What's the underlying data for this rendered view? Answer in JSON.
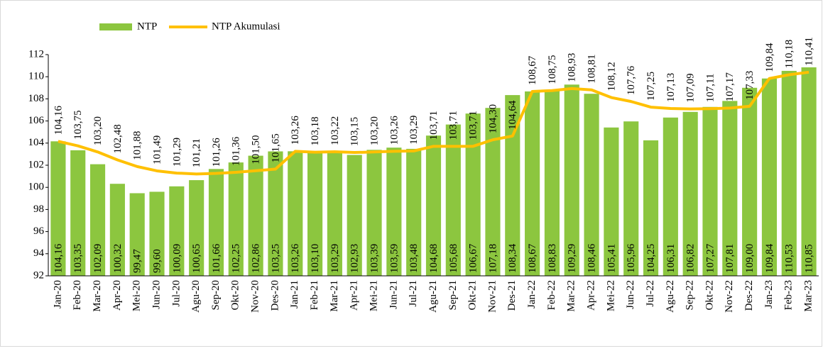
{
  "chart_data": {
    "type": "bar_line",
    "categories": [
      "Jan-20",
      "Feb-20",
      "Mar-20",
      "Apr-20",
      "Mei-20",
      "Jun-20",
      "Jul-20",
      "Agu-20",
      "Sep-20",
      "Okt-20",
      "Nov-20",
      "Des-20",
      "Jan-21",
      "Feb-21",
      "Mar-21",
      "Apr-21",
      "Mei-21",
      "Jun-21",
      "Jul-21",
      "Agu-21",
      "Sep-21",
      "Okt-21",
      "Nov-21",
      "Des-21",
      "Jan-22",
      "Feb-22",
      "Mar-22",
      "Apr-22",
      "Mei-22",
      "Jun-22",
      "Jul-22",
      "Agu-22",
      "Sep-22",
      "Okt-22",
      "Nov-22",
      "Des-22",
      "Jan-23",
      "Feb-23",
      "Mar-23"
    ],
    "series": [
      {
        "name": "NTP",
        "type": "bar",
        "color": "#8cc63f",
        "values": [
          104.16,
          103.35,
          102.09,
          100.32,
          99.47,
          99.6,
          100.09,
          100.65,
          101.66,
          102.25,
          102.86,
          103.25,
          103.26,
          103.1,
          103.29,
          102.93,
          103.39,
          103.59,
          103.48,
          104.68,
          105.68,
          106.67,
          107.18,
          108.34,
          108.67,
          108.83,
          109.29,
          108.46,
          105.41,
          105.96,
          104.25,
          106.31,
          106.82,
          107.27,
          107.81,
          109.0,
          109.84,
          110.53,
          110.85
        ],
        "value_labels": [
          "104,16",
          "103,35",
          "102,09",
          "100,32",
          "99,47",
          "99,60",
          "100,09",
          "100,65",
          "101,66",
          "102,25",
          "102,86",
          "103,25",
          "103,26",
          "103,10",
          "103,29",
          "102,93",
          "103,39",
          "103,59",
          "103,48",
          "104,68",
          "105,68",
          "106,67",
          "107,18",
          "108,34",
          "108,67",
          "108,83",
          "109,29",
          "108,46",
          "105,41",
          "105,96",
          "104,25",
          "106,31",
          "106,82",
          "107,27",
          "107,81",
          "109,00",
          "109,84",
          "110,53",
          "110,85"
        ]
      },
      {
        "name": "NTP Akumulasi",
        "type": "line",
        "color": "#ffc000",
        "values": [
          104.16,
          103.75,
          103.2,
          102.48,
          101.88,
          101.49,
          101.29,
          101.21,
          101.26,
          101.36,
          101.5,
          101.65,
          103.26,
          103.18,
          103.22,
          103.15,
          103.2,
          103.26,
          103.29,
          103.71,
          103.71,
          103.71,
          104.3,
          104.64,
          108.67,
          108.75,
          108.93,
          108.81,
          108.12,
          107.76,
          107.25,
          107.13,
          107.09,
          107.11,
          107.17,
          107.33,
          109.84,
          110.18,
          110.41
        ],
        "value_labels": [
          "104,16",
          "103,75",
          "103,20",
          "102,48",
          "101,88",
          "101,49",
          "101,29",
          "101,21",
          "101,26",
          "101,36",
          "101,50",
          "101,65",
          "103,26",
          "103,18",
          "103,22",
          "103,15",
          "103,20",
          "103,26",
          "103,29",
          "103,71",
          "103,71",
          "103,71",
          "104,30",
          "104,64",
          "108,67",
          "108,75",
          "108,93",
          "108,81",
          "108,12",
          "107,76",
          "107,25",
          "107,13",
          "107,09",
          "107,11",
          "107,17",
          "107,33",
          "109,84",
          "110,18",
          "110,41"
        ]
      }
    ],
    "ylim": [
      92,
      112
    ],
    "yticks": [
      92,
      94,
      96,
      98,
      100,
      102,
      104,
      106,
      108,
      110,
      112
    ],
    "grid": false,
    "legend": "top-left"
  }
}
